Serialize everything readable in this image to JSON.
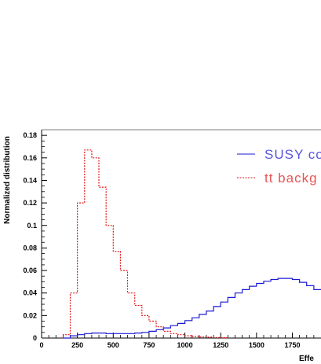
{
  "chart_data": {
    "type": "line",
    "ylabel": "Normalized distribution",
    "xlabel": "Effe",
    "xlim": [
      0,
      1950
    ],
    "ylim": [
      0,
      0.185
    ],
    "bin_width": 50,
    "x_ticks": [
      0,
      250,
      500,
      750,
      1000,
      1250,
      1500,
      1750
    ],
    "y_ticks": [
      0,
      0.02,
      0.04,
      0.06,
      0.08,
      0.1,
      0.12,
      0.14,
      0.16,
      0.18
    ],
    "y_tick_labels": [
      "0",
      "0.02",
      "0.04",
      "0.06",
      "0.08",
      "0.1",
      "0.12",
      "0.14",
      "0.16",
      "0.18"
    ],
    "x_tick_labels": [
      "0",
      "250",
      "500",
      "750",
      "1000",
      "1250",
      "1500",
      "1750"
    ],
    "series": [
      {
        "name": "SUSY co",
        "color": "#1a1ad6",
        "style": "solid",
        "bin_edges": [
          150,
          200,
          250,
          300,
          350,
          400,
          450,
          500,
          550,
          600,
          650,
          700,
          750,
          800,
          850,
          900,
          950,
          1000,
          1050,
          1100,
          1150,
          1200,
          1250,
          1300,
          1350,
          1400,
          1450,
          1500,
          1550,
          1600,
          1650,
          1700,
          1750,
          1800,
          1850,
          1900,
          1950
        ],
        "values": [
          0.0,
          0.002,
          0.003,
          0.004,
          0.0045,
          0.0045,
          0.004,
          0.004,
          0.004,
          0.004,
          0.0045,
          0.005,
          0.006,
          0.0075,
          0.009,
          0.011,
          0.013,
          0.0155,
          0.018,
          0.021,
          0.024,
          0.028,
          0.032,
          0.036,
          0.04,
          0.043,
          0.046,
          0.0485,
          0.0505,
          0.052,
          0.053,
          0.053,
          0.052,
          0.0495,
          0.0465,
          0.043
        ]
      },
      {
        "name": "tt backg",
        "color": "#e01a1a",
        "style": "dashed",
        "bin_edges": [
          150,
          200,
          250,
          300,
          350,
          400,
          450,
          500,
          550,
          600,
          650,
          700,
          750,
          800,
          850,
          900,
          950,
          1000,
          1050,
          1100,
          1150,
          1200,
          1250,
          1300
        ],
        "values": [
          0.003,
          0.04,
          0.12,
          0.167,
          0.16,
          0.134,
          0.1,
          0.077,
          0.06,
          0.04,
          0.029,
          0.02,
          0.015,
          0.01,
          0.006,
          0.004,
          0.003,
          0.002,
          0.0015,
          0.001,
          0.0008,
          0.0005,
          0.0003
        ]
      }
    ],
    "legend_position": "top-right"
  }
}
